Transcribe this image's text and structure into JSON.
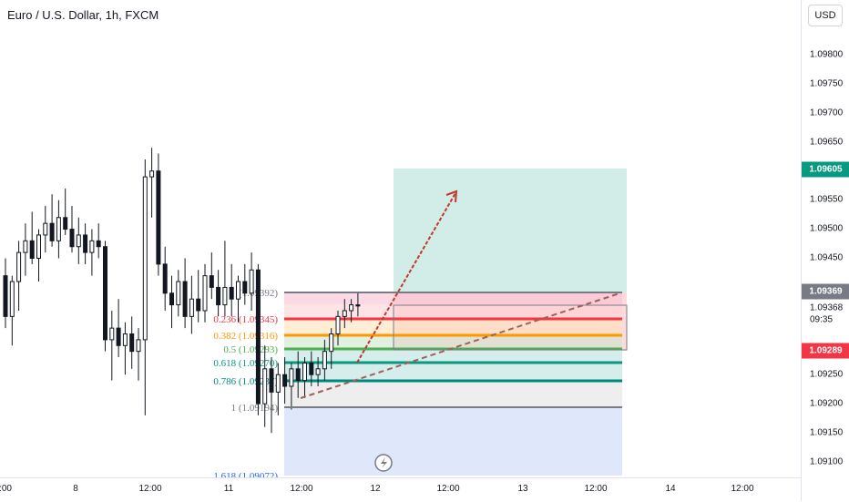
{
  "header": {
    "title": "Euro / U.S. Dollar, 1h, FXCM"
  },
  "price_axis": {
    "currency": "USD",
    "ticks": [
      "1.09800",
      "1.09750",
      "1.09700",
      "1.09650",
      "1.09550",
      "1.09500",
      "1.09450",
      "1.09250",
      "1.09200",
      "1.09150",
      "1.09100"
    ],
    "tags": {
      "target": {
        "label": "1.09605",
        "color": "#089981"
      },
      "current": {
        "label": "1.09369",
        "color": "#787b86"
      },
      "stop": {
        "label": "1.09289",
        "color": "#f23645"
      },
      "last_price": "1.09368",
      "countdown": "09:35"
    }
  },
  "time_axis": {
    "labels": [
      ":00",
      "8",
      "12:00",
      "11",
      "12:00",
      "12",
      "12:00",
      "13",
      "12:00",
      "14",
      "12:00"
    ]
  },
  "fib_levels": [
    {
      "label": "(1.09392)",
      "color": "#787b86"
    },
    {
      "label": "0.236 (1.09345)",
      "color": "#f23645"
    },
    {
      "label": "0.382 (1.09316)",
      "color": "#ff9800"
    },
    {
      "label": "0.5 (1.09293)",
      "color": "#4caf50"
    },
    {
      "label": "0.618 (1.09270)",
      "color": "#089981"
    },
    {
      "label": "0.786 (1.09237)",
      "color": "#00897b"
    },
    {
      "label": "1 (1.09194)",
      "color": "#787b86"
    },
    {
      "label": "1.618 (1.09072)",
      "color": "#2962ff"
    }
  ],
  "chart_data": {
    "type": "candlestick",
    "title": "Euro / U.S. Dollar, 1h, FXCM",
    "ylim": [
      1.09072,
      1.0983
    ],
    "candles": [
      {
        "o": 1.0942,
        "h": 1.0945,
        "l": 1.0933,
        "c": 1.0935
      },
      {
        "o": 1.0935,
        "h": 1.0942,
        "l": 1.093,
        "c": 1.0941
      },
      {
        "o": 1.0941,
        "h": 1.0948,
        "l": 1.0936,
        "c": 1.0946
      },
      {
        "o": 1.0946,
        "h": 1.0951,
        "l": 1.0942,
        "c": 1.0948
      },
      {
        "o": 1.0948,
        "h": 1.0953,
        "l": 1.0944,
        "c": 1.0945
      },
      {
        "o": 1.0945,
        "h": 1.095,
        "l": 1.0941,
        "c": 1.0949
      },
      {
        "o": 1.0949,
        "h": 1.0954,
        "l": 1.0946,
        "c": 1.0951
      },
      {
        "o": 1.0951,
        "h": 1.0956,
        "l": 1.0947,
        "c": 1.0948
      },
      {
        "o": 1.0948,
        "h": 1.0955,
        "l": 1.0945,
        "c": 1.0952
      },
      {
        "o": 1.0952,
        "h": 1.0957,
        "l": 1.0949,
        "c": 1.095
      },
      {
        "o": 1.095,
        "h": 1.0954,
        "l": 1.0946,
        "c": 1.0947
      },
      {
        "o": 1.0947,
        "h": 1.0952,
        "l": 1.0944,
        "c": 1.0949
      },
      {
        "o": 1.0949,
        "h": 1.0951,
        "l": 1.0944,
        "c": 1.0946
      },
      {
        "o": 1.0946,
        "h": 1.095,
        "l": 1.0942,
        "c": 1.0948
      },
      {
        "o": 1.0948,
        "h": 1.0951,
        "l": 1.0945,
        "c": 1.0947
      },
      {
        "o": 1.0947,
        "h": 1.0948,
        "l": 1.0929,
        "c": 1.0931
      },
      {
        "o": 1.0931,
        "h": 1.0936,
        "l": 1.0924,
        "c": 1.0933
      },
      {
        "o": 1.0933,
        "h": 1.0938,
        "l": 1.0928,
        "c": 1.093
      },
      {
        "o": 1.093,
        "h": 1.0934,
        "l": 1.0925,
        "c": 1.0932
      },
      {
        "o": 1.0932,
        "h": 1.0935,
        "l": 1.0926,
        "c": 1.0929
      },
      {
        "o": 1.0929,
        "h": 1.0933,
        "l": 1.0924,
        "c": 1.0931
      },
      {
        "o": 1.0931,
        "h": 1.0962,
        "l": 1.0918,
        "c": 1.0959
      },
      {
        "o": 1.0959,
        "h": 1.0964,
        "l": 1.0952,
        "c": 1.096
      },
      {
        "o": 1.096,
        "h": 1.0963,
        "l": 1.0942,
        "c": 1.0944
      },
      {
        "o": 1.0944,
        "h": 1.0947,
        "l": 1.0936,
        "c": 1.0939
      },
      {
        "o": 1.0939,
        "h": 1.0942,
        "l": 1.0933,
        "c": 1.0937
      },
      {
        "o": 1.0937,
        "h": 1.0943,
        "l": 1.0935,
        "c": 1.0941
      },
      {
        "o": 1.0941,
        "h": 1.0945,
        "l": 1.0933,
        "c": 1.0935
      },
      {
        "o": 1.0935,
        "h": 1.0942,
        "l": 1.0932,
        "c": 1.0938
      },
      {
        "o": 1.0938,
        "h": 1.0943,
        "l": 1.0934,
        "c": 1.0936
      },
      {
        "o": 1.0936,
        "h": 1.0944,
        "l": 1.0934,
        "c": 1.0942
      },
      {
        "o": 1.0942,
        "h": 1.0946,
        "l": 1.0938,
        "c": 1.094
      },
      {
        "o": 1.094,
        "h": 1.0943,
        "l": 1.0935,
        "c": 1.0937
      },
      {
        "o": 1.0937,
        "h": 1.0948,
        "l": 1.0935,
        "c": 1.094
      },
      {
        "o": 1.094,
        "h": 1.0944,
        "l": 1.0935,
        "c": 1.0938
      },
      {
        "o": 1.0938,
        "h": 1.0942,
        "l": 1.0934,
        "c": 1.0941
      },
      {
        "o": 1.0941,
        "h": 1.0944,
        "l": 1.0937,
        "c": 1.0939
      },
      {
        "o": 1.0939,
        "h": 1.0946,
        "l": 1.0936,
        "c": 1.0943
      },
      {
        "o": 1.0943,
        "h": 1.0944,
        "l": 1.0918,
        "c": 1.092
      },
      {
        "o": 1.092,
        "h": 1.093,
        "l": 1.0916,
        "c": 1.0926
      },
      {
        "o": 1.0926,
        "h": 1.0928,
        "l": 1.0915,
        "c": 1.0922
      },
      {
        "o": 1.0922,
        "h": 1.0927,
        "l": 1.0918,
        "c": 1.0925
      },
      {
        "o": 1.0925,
        "h": 1.0928,
        "l": 1.092,
        "c": 1.0923
      },
      {
        "o": 1.0923,
        "h": 1.0927,
        "l": 1.0919,
        "c": 1.0926
      },
      {
        "o": 1.0926,
        "h": 1.0929,
        "l": 1.0921,
        "c": 1.0924
      },
      {
        "o": 1.0924,
        "h": 1.0928,
        "l": 1.0921,
        "c": 1.0927
      },
      {
        "o": 1.0927,
        "h": 1.0929,
        "l": 1.0923,
        "c": 1.0925
      },
      {
        "o": 1.0925,
        "h": 1.0928,
        "l": 1.0923,
        "c": 1.0926
      },
      {
        "o": 1.0926,
        "h": 1.0931,
        "l": 1.0924,
        "c": 1.0929
      },
      {
        "o": 1.0929,
        "h": 1.0933,
        "l": 1.0926,
        "c": 1.0932
      },
      {
        "o": 1.0932,
        "h": 1.0936,
        "l": 1.093,
        "c": 1.0935
      },
      {
        "o": 1.0935,
        "h": 1.0938,
        "l": 1.0933,
        "c": 1.0936
      },
      {
        "o": 1.0936,
        "h": 1.0938,
        "l": 1.0934,
        "c": 1.0937
      },
      {
        "o": 1.0937,
        "h": 1.0939,
        "l": 1.0935,
        "c": 1.09368
      }
    ]
  }
}
